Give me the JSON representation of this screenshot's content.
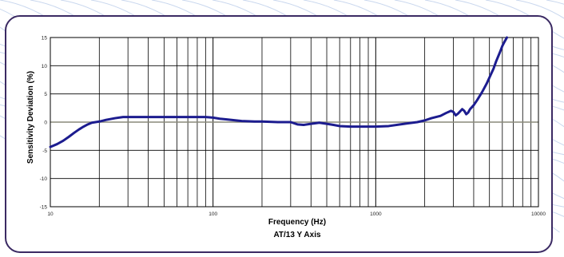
{
  "colors": {
    "frame_border": "#3b2a63",
    "backdrop_stripe": "#c9d7ee",
    "plot_line": "#1c1c8f",
    "grid": "#000000",
    "zero_line": "#8a8a7a"
  },
  "chart_data": {
    "type": "line",
    "xscale": "log",
    "xlim": [
      10,
      10000
    ],
    "ylim": [
      -15,
      15
    ],
    "xlabel": "Frequency (Hz)",
    "subtitle": "AT/13  Y Axis",
    "ylabel": "Sensitivity Deviation (%)",
    "x_tick_labels": [
      "10",
      "100",
      "1000",
      "10000"
    ],
    "y_ticks": [
      15,
      10,
      5,
      0,
      -5,
      -10,
      -15
    ],
    "y_tick_labels": [
      "15",
      "10",
      "5",
      "0",
      "-5",
      "-10",
      "-15"
    ],
    "grid": true,
    "series": [
      {
        "x": [
          10,
          11,
          12,
          13,
          14,
          15,
          16,
          17,
          18,
          20,
          22,
          25,
          28,
          30,
          35,
          40,
          50,
          60,
          70,
          80,
          90,
          100,
          110,
          120,
          150,
          180,
          200,
          250,
          300,
          330,
          360,
          400,
          450,
          500,
          550,
          600,
          700,
          800,
          1000,
          1200,
          1500,
          1800,
          2000,
          2200,
          2500,
          2700,
          2900,
          3000,
          3100,
          3200,
          3300,
          3400,
          3500,
          3600,
          3700,
          3800,
          4000,
          4200,
          4500,
          4800,
          5000,
          5300,
          5500,
          5800,
          6000,
          6200,
          6400
        ],
        "y": [
          -4.4,
          -3.9,
          -3.3,
          -2.6,
          -1.9,
          -1.3,
          -0.8,
          -0.4,
          -0.1,
          0.1,
          0.4,
          0.7,
          0.9,
          0.9,
          0.9,
          0.9,
          0.9,
          0.9,
          0.9,
          0.9,
          0.9,
          0.8,
          0.6,
          0.5,
          0.2,
          0.1,
          0.1,
          0.0,
          0.0,
          -0.4,
          -0.5,
          -0.3,
          -0.1,
          -0.3,
          -0.5,
          -0.7,
          -0.8,
          -0.8,
          -0.8,
          -0.7,
          -0.3,
          0.0,
          0.3,
          0.7,
          1.1,
          1.6,
          2.0,
          1.8,
          1.2,
          1.5,
          1.9,
          2.3,
          2.0,
          1.4,
          1.7,
          2.3,
          3.0,
          3.9,
          5.3,
          6.8,
          7.9,
          9.5,
          10.8,
          12.4,
          13.5,
          14.3,
          15.0
        ]
      }
    ]
  }
}
